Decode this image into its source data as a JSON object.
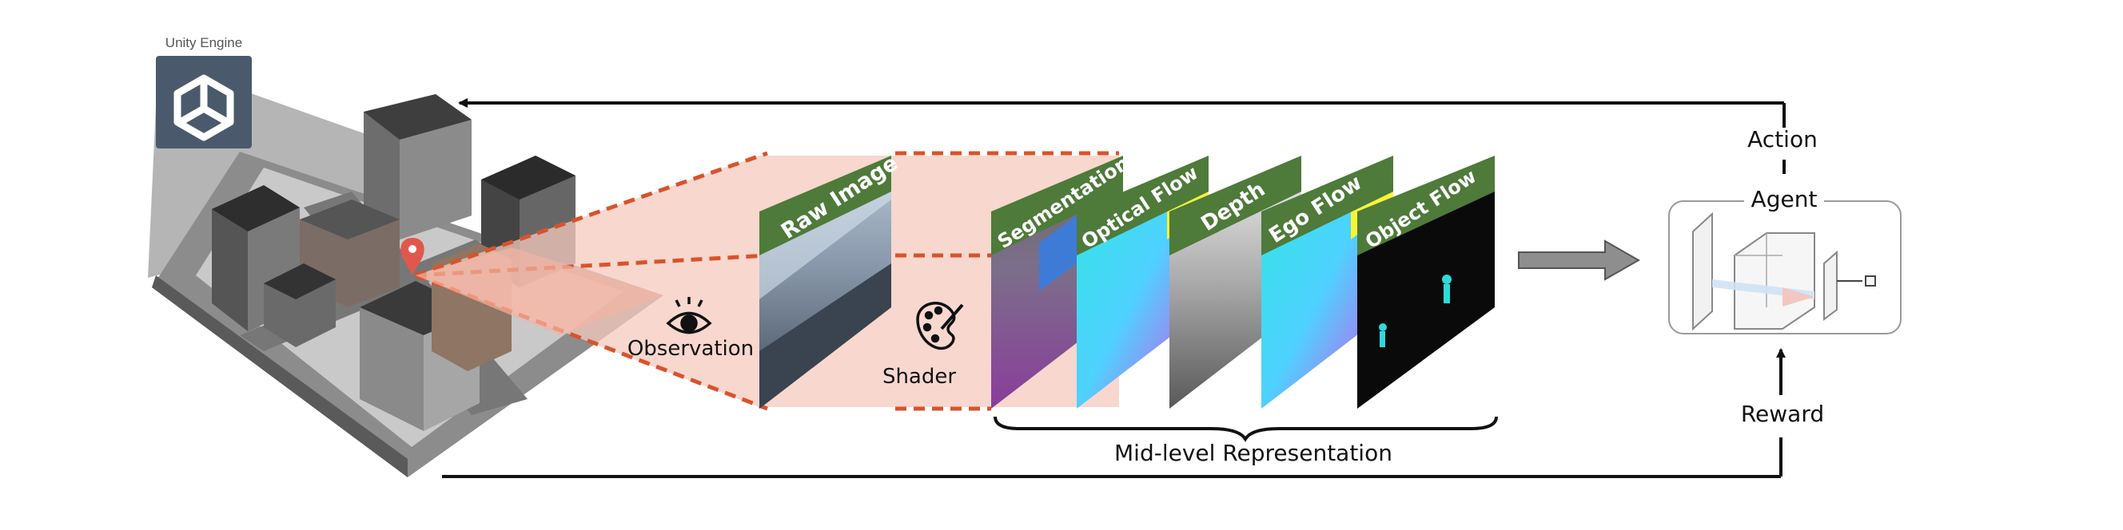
{
  "engine": {
    "label": "Unity Engine",
    "icon": "unity-logo-icon"
  },
  "observation": {
    "label": "Observation",
    "icon": "eye-icon"
  },
  "shader": {
    "label": "Shader",
    "icon": "palette-icon"
  },
  "raw_image": {
    "label": "Raw Image"
  },
  "representations": [
    {
      "label": "Segmentation"
    },
    {
      "label": "Optical Flow"
    },
    {
      "label": "Depth"
    },
    {
      "label": "Ego Flow"
    },
    {
      "label": "Object Flow"
    }
  ],
  "mid_level": {
    "label": "Mid-level Representation"
  },
  "agent": {
    "label": "Agent"
  },
  "action": {
    "label": "Action"
  },
  "reward": {
    "label": "Reward"
  },
  "colors": {
    "accent_orange": "#d9532b",
    "tab_green": "#4e7a3a",
    "frustum_fill": "#f6c9bd",
    "engine_box": "#4a5a6c"
  }
}
